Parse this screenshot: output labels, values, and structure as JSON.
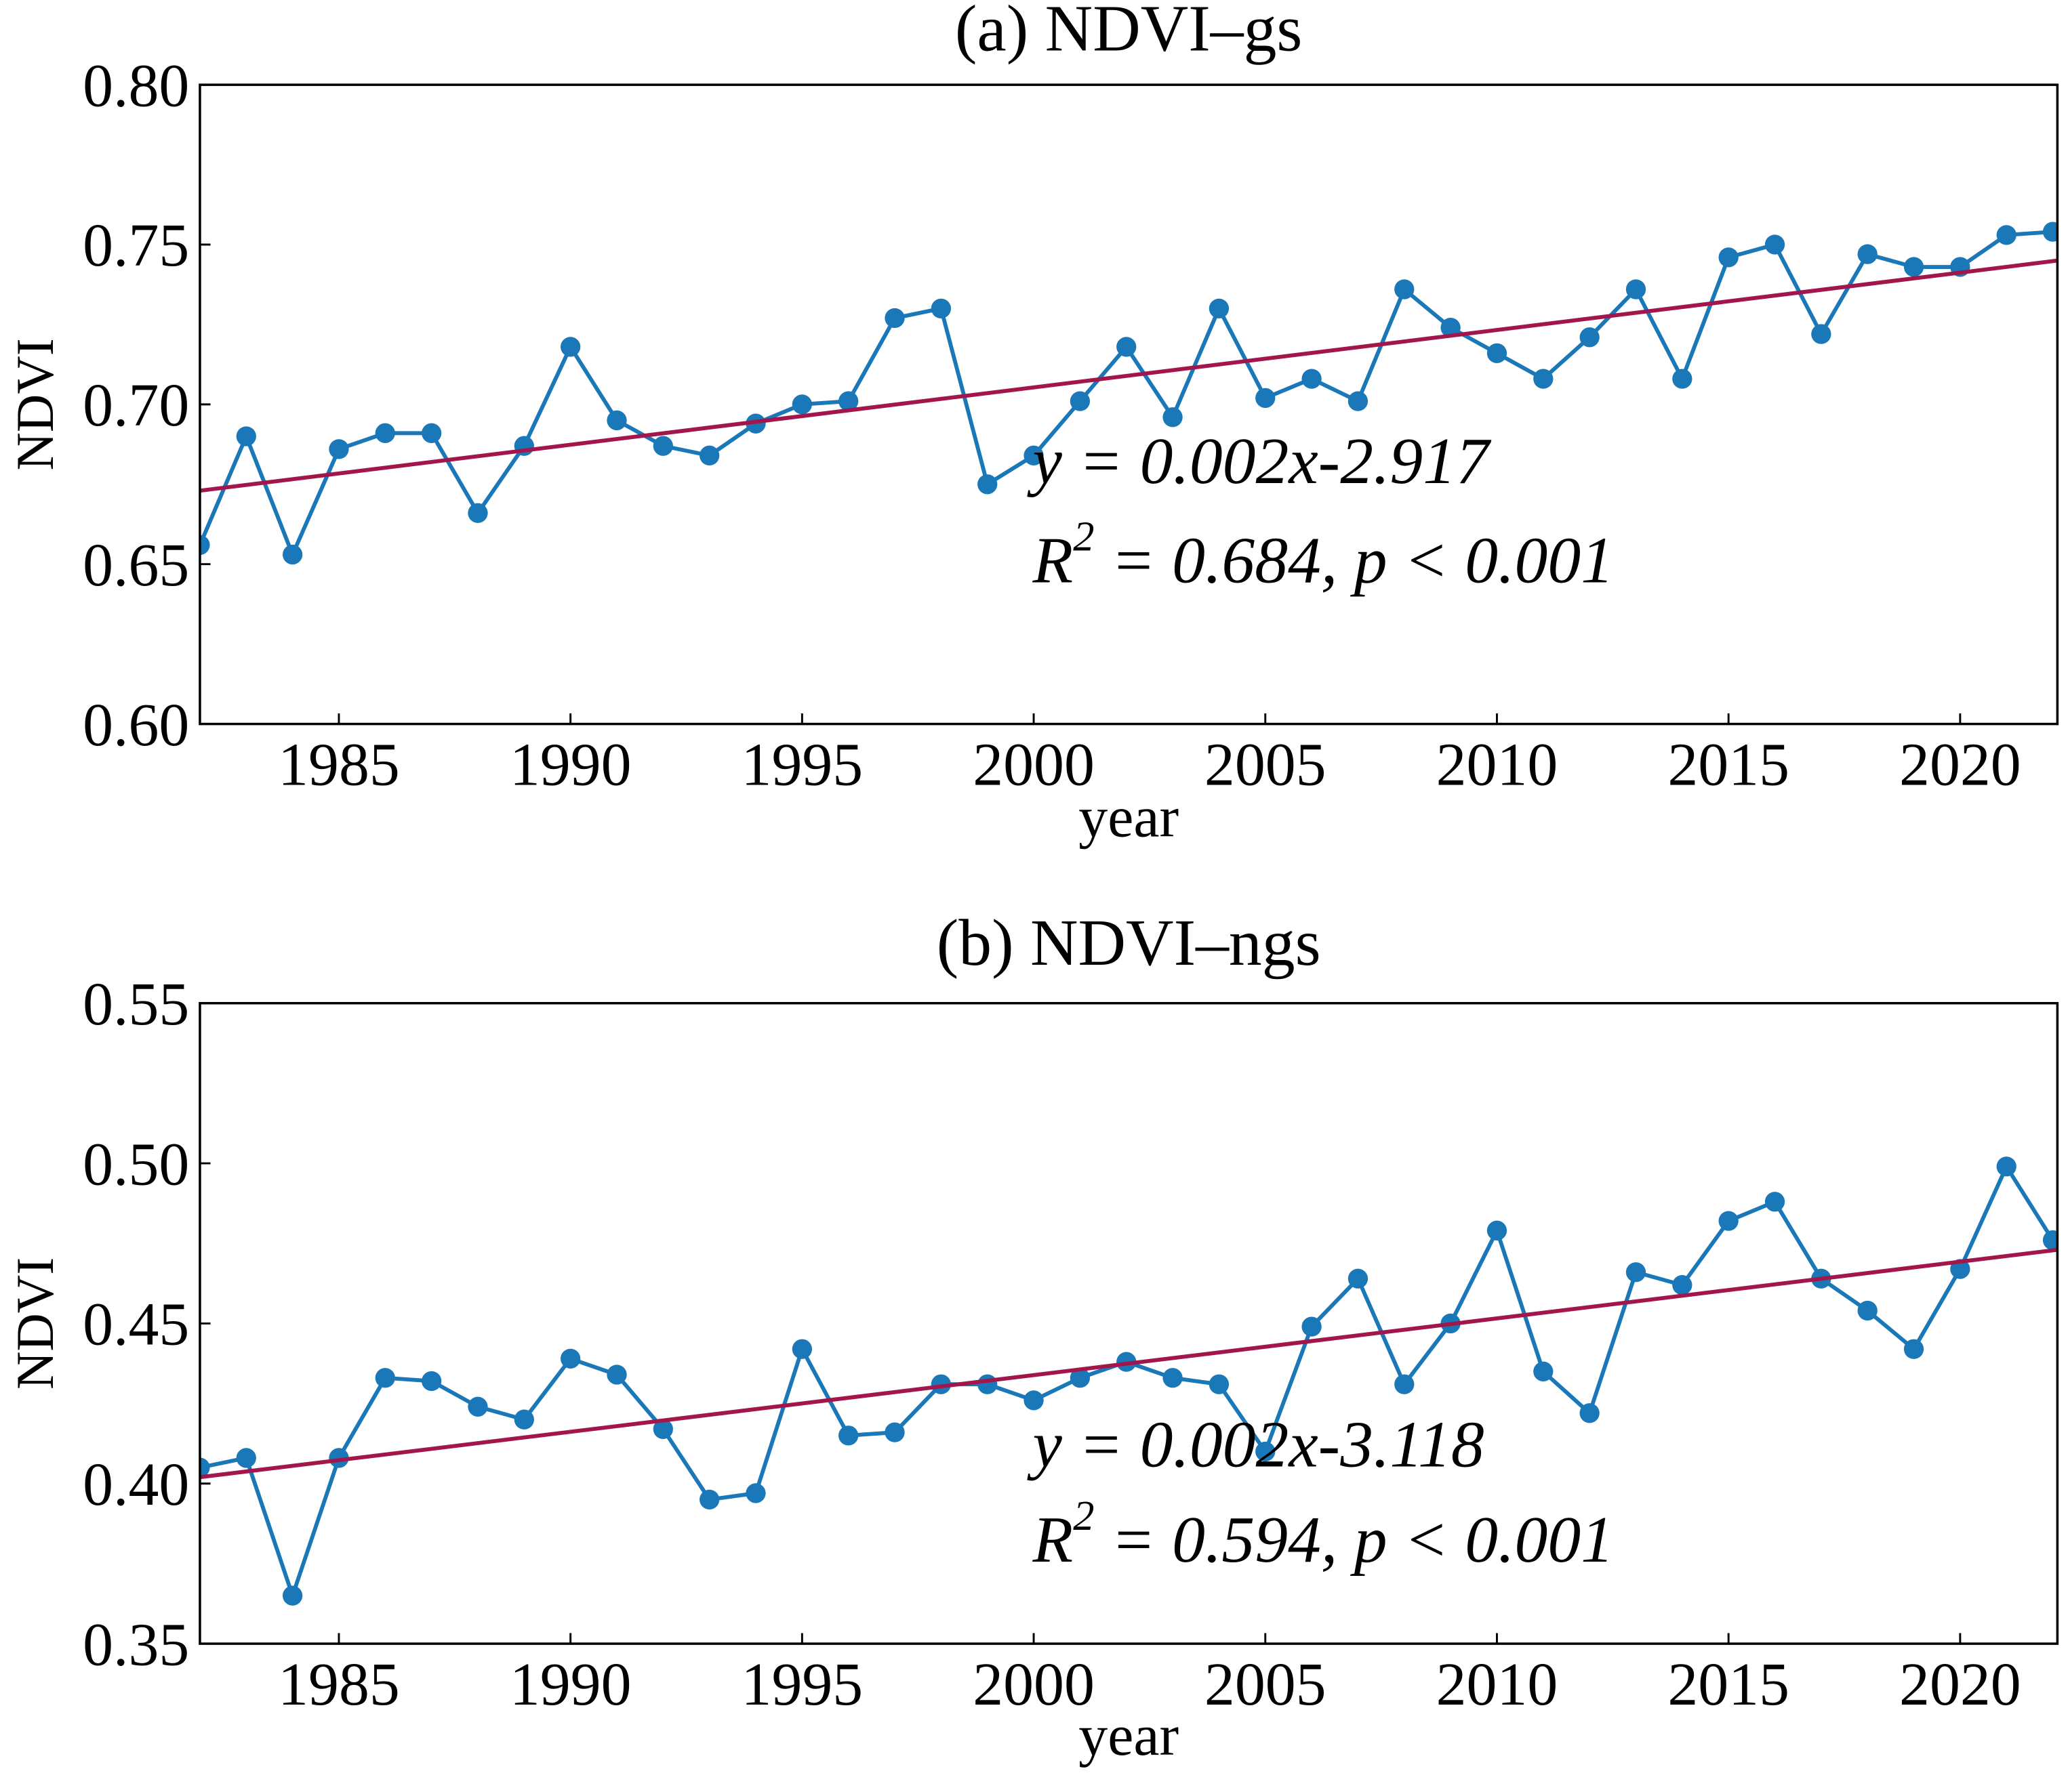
{
  "chart_data": [
    {
      "type": "line",
      "title": "(a) NDVI–gs",
      "xlabel": "year",
      "ylabel": "NDVI",
      "x": [
        1982,
        1983,
        1984,
        1985,
        1986,
        1987,
        1988,
        1989,
        1990,
        1991,
        1992,
        1993,
        1994,
        1995,
        1996,
        1997,
        1998,
        1999,
        2000,
        2001,
        2002,
        2003,
        2004,
        2005,
        2006,
        2007,
        2008,
        2009,
        2010,
        2011,
        2012,
        2013,
        2014,
        2015,
        2016,
        2017,
        2018,
        2019,
        2020,
        2021,
        2022
      ],
      "series": [
        {
          "color": "#1a78b8",
          "values": [
            0.656,
            0.69,
            0.653,
            0.686,
            0.691,
            0.691,
            0.666,
            0.687,
            0.718,
            0.695,
            0.687,
            0.684,
            0.694,
            0.7,
            0.701,
            0.727,
            0.73,
            0.675,
            0.684,
            0.701,
            0.718,
            0.696,
            0.73,
            0.702,
            0.708,
            0.701,
            0.736,
            0.724,
            0.716,
            0.708,
            0.721,
            0.736,
            0.708,
            0.746,
            0.75,
            0.722,
            0.747,
            0.743,
            0.743,
            0.753,
            0.754
          ]
        }
      ],
      "trend": {
        "color": "#a3164c",
        "x": [
          1982,
          2022.1
        ],
        "values": [
          0.673,
          0.745
        ]
      },
      "annotations": {
        "equation": "y = 0.002x-2.917",
        "r_base": "R",
        "r_sup": "2",
        "r_rest": " = 0.684, p < 0.001"
      },
      "xlim": [
        1982,
        2022.1
      ],
      "xticks": [
        1985,
        1990,
        1995,
        2000,
        2005,
        2010,
        2015,
        2020
      ],
      "ylim": [
        0.6,
        0.8
      ],
      "yticks": [
        {
          "value": 0.6,
          "label": "0.60"
        },
        0.65,
        {
          "value": 0.7,
          "label": "0.70"
        },
        0.75,
        {
          "value": 0.8,
          "label": "0.80"
        }
      ]
    },
    {
      "type": "line",
      "title": "(b) NDVI–ngs",
      "xlabel": "year",
      "ylabel": "NDVI",
      "x": [
        1982,
        1983,
        1984,
        1985,
        1986,
        1987,
        1988,
        1989,
        1990,
        1991,
        1992,
        1993,
        1994,
        1995,
        1996,
        1997,
        1998,
        1999,
        2000,
        2001,
        2002,
        2003,
        2004,
        2005,
        2006,
        2007,
        2008,
        2009,
        2010,
        2011,
        2012,
        2013,
        2014,
        2015,
        2016,
        2017,
        2018,
        2019,
        2020,
        2021,
        2022
      ],
      "series": [
        {
          "color": "#1a78b8",
          "values": [
            0.405,
            0.408,
            0.365,
            0.408,
            0.433,
            0.432,
            0.424,
            0.42,
            0.439,
            0.434,
            0.417,
            0.395,
            0.397,
            0.442,
            0.415,
            0.416,
            0.431,
            0.431,
            0.426,
            0.433,
            0.438,
            0.433,
            0.431,
            0.41,
            0.449,
            0.464,
            0.431,
            0.45,
            0.479,
            0.435,
            0.422,
            0.466,
            0.462,
            0.482,
            0.488,
            0.464,
            0.454,
            0.442,
            0.467,
            0.499,
            0.476
          ]
        }
      ],
      "trend": {
        "color": "#a3164c",
        "x": [
          1982,
          2022.1
        ],
        "values": [
          0.402,
          0.473
        ]
      },
      "annotations": {
        "equation": "y = 0.002x-3.118",
        "r_base": "R",
        "r_sup": "2",
        "r_rest": " = 0.594, p < 0.001"
      },
      "xlim": [
        1982,
        2022.1
      ],
      "xticks": [
        1985,
        1990,
        1995,
        2000,
        2005,
        2010,
        2015,
        2020
      ],
      "ylim": [
        0.35,
        0.55
      ],
      "yticks": [
        0.35,
        {
          "value": 0.4,
          "label": "0.40"
        },
        0.45,
        {
          "value": 0.5,
          "label": "0.50"
        },
        0.55
      ]
    }
  ]
}
